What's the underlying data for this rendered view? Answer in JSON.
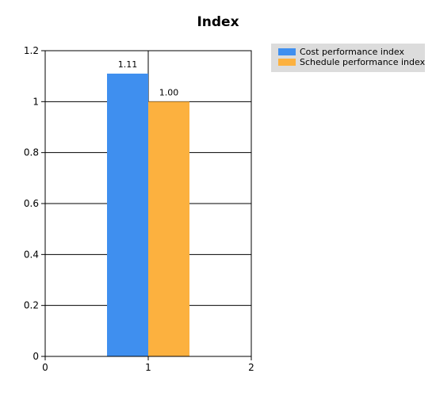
{
  "chart_data": {
    "type": "bar",
    "title": "Index",
    "xlabel": "",
    "ylabel": "",
    "x_ticks": [
      "0",
      "1",
      "2"
    ],
    "xlim": [
      0,
      2
    ],
    "y_ticks": [
      "0",
      "0.2",
      "0.4",
      "0.6",
      "0.8",
      "1",
      "1.2"
    ],
    "ylim": [
      0,
      1.2
    ],
    "grid": {
      "horizontal": true,
      "vertical": true
    },
    "legend_position": "top-right",
    "categories": [
      "1"
    ],
    "series": [
      {
        "name": "Cost performance index",
        "values": [
          1.11
        ],
        "labels": [
          "1.11"
        ],
        "color": "#3f8fef"
      },
      {
        "name": "Schedule performance index",
        "values": [
          1.0
        ],
        "labels": [
          "1.00"
        ],
        "color": "#fcb13f"
      }
    ],
    "colors": {
      "legend_background": "#dcdcdc",
      "axis": "#000000",
      "grid": "#000000"
    }
  }
}
